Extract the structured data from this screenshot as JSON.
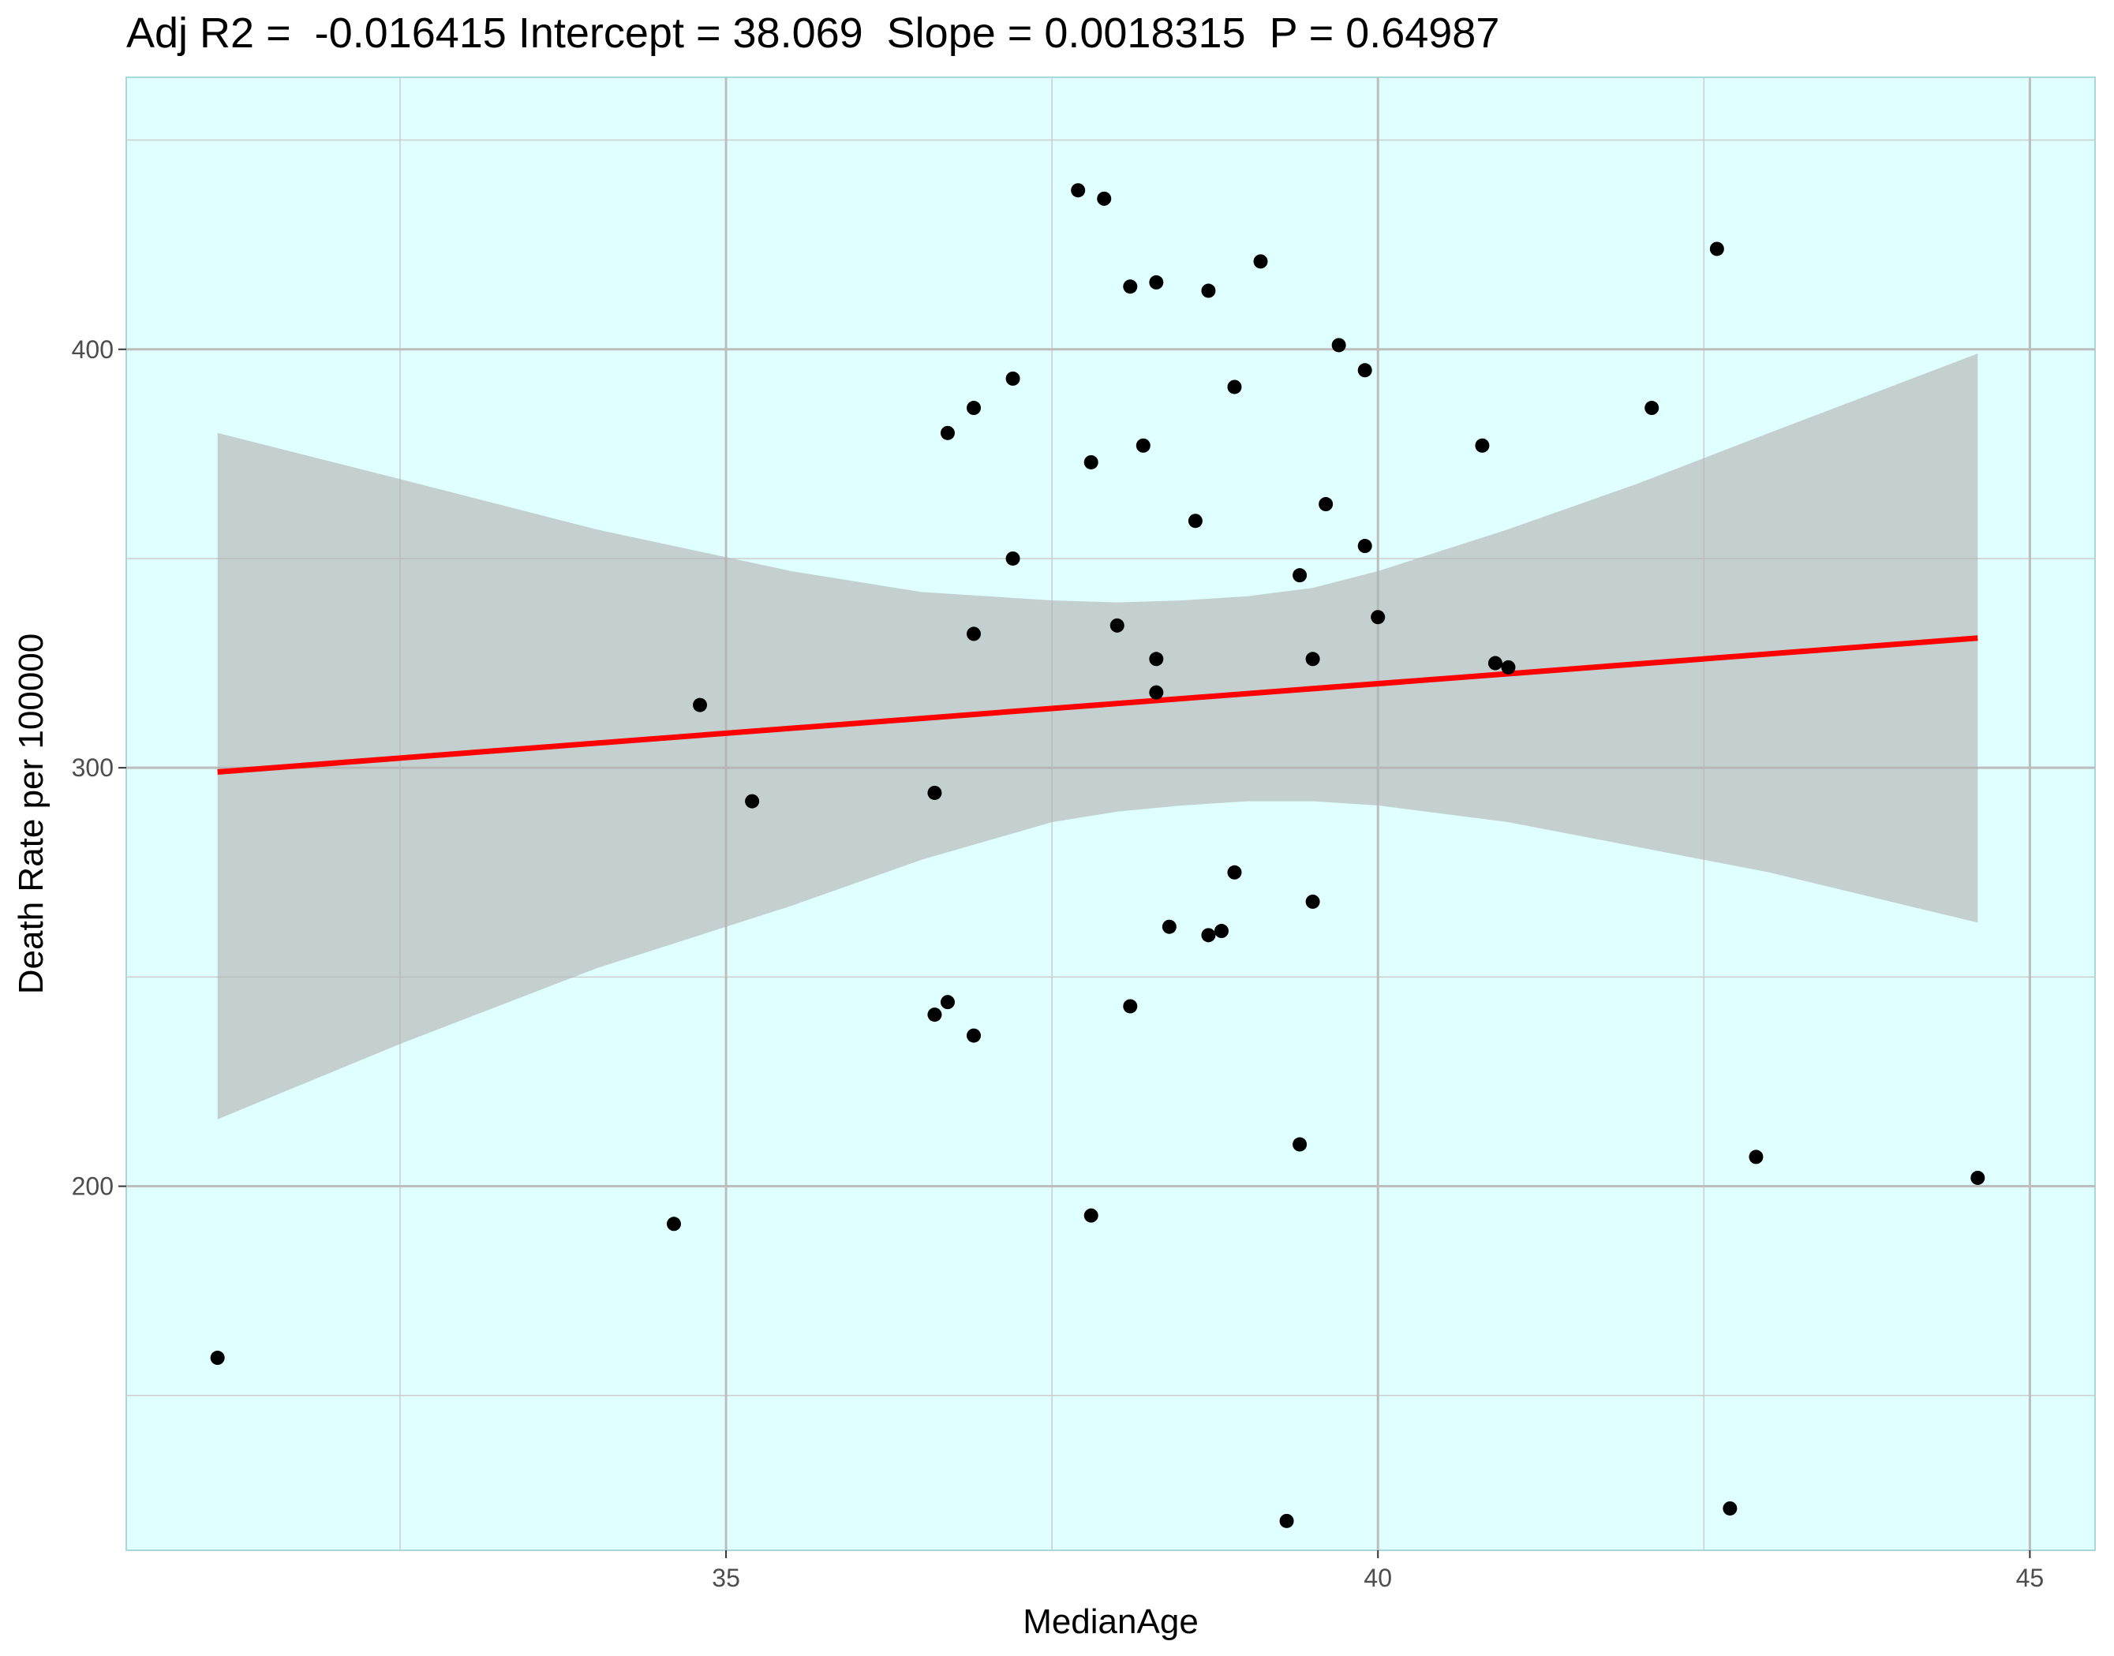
{
  "chart_data": {
    "type": "scatter",
    "title": "Adj R2 =  -0.016415 Intercept = 38.069  Slope = 0.0018315  P = 0.64987",
    "xlabel": "MedianAge",
    "ylabel": "Death Rate per 100000",
    "xlim": [
      30.4,
      45.5
    ],
    "ylim": [
      113,
      465
    ],
    "x_ticks": [
      35,
      40,
      45
    ],
    "y_ticks": [
      200,
      300,
      400
    ],
    "x_minor_ticks": [
      32.5,
      37.5,
      42.5
    ],
    "y_minor_ticks": [
      150,
      250,
      350,
      450
    ],
    "grid": true,
    "legend": "none",
    "colors": {
      "panel_background": "#e0ffff",
      "panel_border": "#a8d8dc",
      "grid_major": "#bdbdbd",
      "grid_minor": "#cccccc",
      "points": "#000000",
      "fit_line": "#ff0000",
      "confidence_band": "#b0b0b0"
    },
    "points": [
      {
        "x": 31.1,
        "y": 159
      },
      {
        "x": 34.6,
        "y": 191
      },
      {
        "x": 34.8,
        "y": 315
      },
      {
        "x": 35.2,
        "y": 292
      },
      {
        "x": 36.6,
        "y": 241
      },
      {
        "x": 36.6,
        "y": 294
      },
      {
        "x": 36.7,
        "y": 244
      },
      {
        "x": 36.7,
        "y": 380
      },
      {
        "x": 36.9,
        "y": 236
      },
      {
        "x": 36.9,
        "y": 332
      },
      {
        "x": 36.9,
        "y": 386
      },
      {
        "x": 37.2,
        "y": 393
      },
      {
        "x": 37.2,
        "y": 350
      },
      {
        "x": 37.7,
        "y": 438
      },
      {
        "x": 37.8,
        "y": 373
      },
      {
        "x": 37.8,
        "y": 193
      },
      {
        "x": 37.9,
        "y": 436
      },
      {
        "x": 38.0,
        "y": 334
      },
      {
        "x": 38.1,
        "y": 415
      },
      {
        "x": 38.1,
        "y": 243
      },
      {
        "x": 38.2,
        "y": 377
      },
      {
        "x": 38.3,
        "y": 416
      },
      {
        "x": 38.3,
        "y": 326
      },
      {
        "x": 38.3,
        "y": 318
      },
      {
        "x": 38.4,
        "y": 262
      },
      {
        "x": 38.6,
        "y": 359
      },
      {
        "x": 38.7,
        "y": 414
      },
      {
        "x": 38.7,
        "y": 260
      },
      {
        "x": 38.8,
        "y": 261
      },
      {
        "x": 38.9,
        "y": 391
      },
      {
        "x": 38.9,
        "y": 275
      },
      {
        "x": 39.1,
        "y": 421
      },
      {
        "x": 39.3,
        "y": 120
      },
      {
        "x": 39.4,
        "y": 346
      },
      {
        "x": 39.4,
        "y": 210
      },
      {
        "x": 39.5,
        "y": 326
      },
      {
        "x": 39.5,
        "y": 268
      },
      {
        "x": 39.6,
        "y": 363
      },
      {
        "x": 39.7,
        "y": 401
      },
      {
        "x": 39.9,
        "y": 395
      },
      {
        "x": 39.9,
        "y": 353
      },
      {
        "x": 40.0,
        "y": 336
      },
      {
        "x": 40.8,
        "y": 377
      },
      {
        "x": 40.9,
        "y": 325
      },
      {
        "x": 41.0,
        "y": 324
      },
      {
        "x": 42.1,
        "y": 386
      },
      {
        "x": 42.6,
        "y": 424
      },
      {
        "x": 42.7,
        "y": 123
      },
      {
        "x": 42.9,
        "y": 207
      },
      {
        "x": 44.6,
        "y": 202
      }
    ],
    "fit_line": {
      "x": [
        31.1,
        44.6
      ],
      "y": [
        299,
        331
      ]
    },
    "confidence_band": {
      "x": [
        31.1,
        32.5,
        34.0,
        35.5,
        36.5,
        37.5,
        38.0,
        38.5,
        39.0,
        39.5,
        40.0,
        41.0,
        42.0,
        43.0,
        44.6
      ],
      "upper": [
        380,
        369,
        357,
        347,
        342,
        340,
        339.5,
        340,
        341,
        343,
        347,
        357,
        368,
        380,
        399
      ],
      "lower": [
        216,
        234,
        252,
        267,
        278,
        287,
        289.5,
        291,
        292,
        292,
        291,
        287,
        281,
        275,
        263
      ]
    }
  }
}
